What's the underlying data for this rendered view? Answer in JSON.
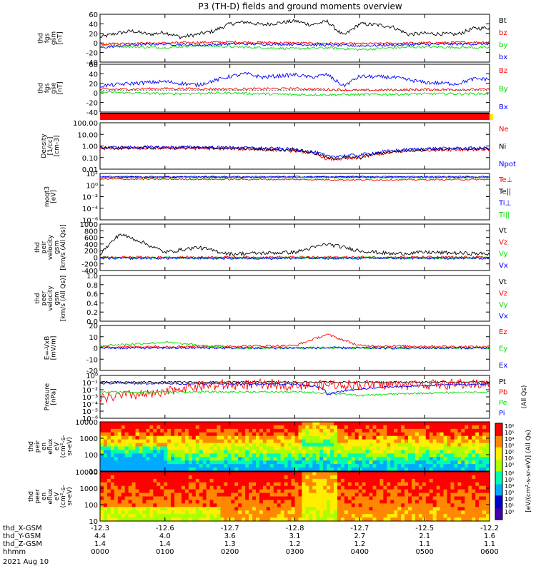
{
  "page": {
    "title": "P3 (TH-D) fields and ground moments overview"
  },
  "colors": {
    "black": "#000000",
    "red": "#ff0000",
    "green": "#00dd00",
    "blue": "#0000ff"
  },
  "time": {
    "ticks": [
      "0000",
      "0100",
      "0200",
      "0300",
      "0400",
      "0500",
      "0600"
    ],
    "ephem_rows": [
      {
        "label": "thd_X-GSM",
        "values": [
          "-12.3",
          "-12.6",
          "-12.7",
          "-12.8",
          "-12.7",
          "-12.5",
          "-12.2"
        ]
      },
      {
        "label": "thd_Y-GSM",
        "values": [
          "4.4",
          "4.0",
          "3.6",
          "3.1",
          "2.7",
          "2.1",
          "1.6"
        ]
      },
      {
        "label": "thd_Z-GSM",
        "values": [
          "1.4",
          "1.4",
          "1.3",
          "1.2",
          "1.2",
          "1.1",
          "1.1"
        ]
      },
      {
        "label": "hhmm",
        "values": [
          "0000",
          "0100",
          "0200",
          "0300",
          "0400",
          "0500",
          "0600"
        ]
      }
    ],
    "date": "2021 Aug 10"
  },
  "chart_data": [
    {
      "type": "line",
      "id": "fgs_gsm",
      "ylabel": [
        "thd",
        "fgs",
        "gsm",
        "[nT]"
      ],
      "ylim": [
        -40,
        60
      ],
      "yticks": [
        "60",
        "40",
        "20",
        "0",
        "-20",
        "-40"
      ],
      "series": [
        {
          "name": "Bt",
          "color": "black",
          "knots": [
            [
              0,
              12
            ],
            [
              0.25,
              20
            ],
            [
              0.5,
              25
            ],
            [
              0.75,
              18
            ],
            [
              1,
              22
            ],
            [
              1.25,
              12
            ],
            [
              1.5,
              18
            ],
            [
              1.75,
              25
            ],
            [
              2,
              40
            ],
            [
              2.25,
              44
            ],
            [
              2.5,
              38
            ],
            [
              2.75,
              42
            ],
            [
              3,
              46
            ],
            [
              3.25,
              38
            ],
            [
              3.5,
              45
            ],
            [
              3.75,
              15
            ],
            [
              4,
              40
            ],
            [
              4.25,
              38
            ],
            [
              4.5,
              34
            ],
            [
              4.75,
              18
            ],
            [
              5,
              20
            ],
            [
              5.5,
              18
            ],
            [
              5.75,
              30
            ],
            [
              6,
              32
            ]
          ]
        },
        {
          "name": "bz",
          "color": "red",
          "knots": [
            [
              0,
              -2
            ],
            [
              1,
              0
            ],
            [
              2,
              2
            ],
            [
              3,
              0
            ],
            [
              4,
              -2
            ],
            [
              5,
              0
            ],
            [
              6,
              2
            ]
          ]
        },
        {
          "name": "by",
          "color": "green",
          "knots": [
            [
              0,
              -5
            ],
            [
              0.5,
              -8
            ],
            [
              1,
              -10
            ],
            [
              1.5,
              -5
            ],
            [
              2,
              -8
            ],
            [
              2.5,
              -10
            ],
            [
              3,
              -12
            ],
            [
              3.5,
              -10
            ],
            [
              4,
              -14
            ],
            [
              4.5,
              -10
            ],
            [
              5,
              -8
            ],
            [
              6,
              -10
            ]
          ]
        },
        {
          "name": "bx",
          "color": "blue",
          "knots": [
            [
              0,
              -10
            ],
            [
              0.5,
              -4
            ],
            [
              1,
              -2
            ],
            [
              1.5,
              -5
            ],
            [
              2,
              -2
            ],
            [
              3,
              -3
            ],
            [
              4,
              -6
            ],
            [
              5,
              -3
            ],
            [
              6,
              -2
            ]
          ]
        }
      ]
    },
    {
      "type": "line",
      "id": "fgs_gse",
      "ylabel": [
        "thd",
        "fgs",
        "gse",
        "[nT]"
      ],
      "ylim": [
        -50,
        60
      ],
      "yticks": [
        "60",
        "40",
        "20",
        "0",
        "-20",
        "-40"
      ],
      "series": [
        {
          "name": "Bz",
          "color": "red",
          "knots": [
            [
              0,
              2
            ],
            [
              1,
              4
            ],
            [
              2,
              3
            ],
            [
              3,
              4
            ],
            [
              4,
              0
            ],
            [
              5,
              2
            ],
            [
              6,
              2
            ]
          ]
        },
        {
          "name": "By",
          "color": "green",
          "knots": [
            [
              0,
              -4
            ],
            [
              1,
              -8
            ],
            [
              2,
              -6
            ],
            [
              3,
              -10
            ],
            [
              4,
              -10
            ],
            [
              5,
              -8
            ],
            [
              6,
              -8
            ]
          ]
        },
        {
          "name": "Bx",
          "color": "blue",
          "knots": [
            [
              0,
              10
            ],
            [
              0.5,
              16
            ],
            [
              1,
              20
            ],
            [
              1.5,
              12
            ],
            [
              2,
              32
            ],
            [
              2.25,
              38
            ],
            [
              2.5,
              30
            ],
            [
              3,
              36
            ],
            [
              3.25,
              30
            ],
            [
              3.5,
              36
            ],
            [
              3.75,
              10
            ],
            [
              4,
              32
            ],
            [
              4.5,
              30
            ],
            [
              5,
              18
            ],
            [
              5.5,
              15
            ],
            [
              5.75,
              26
            ],
            [
              6,
              26
            ]
          ]
        }
      ]
    },
    {
      "type": "line",
      "id": "density",
      "scale": "log",
      "ylabel": [
        "Density",
        "[1/cc]",
        "[cm-3]"
      ],
      "ylim": [
        0.01,
        200
      ],
      "yticks": [
        "100.00",
        "10.00",
        "1.00",
        "0.10",
        "0.01"
      ],
      "series": [
        {
          "name": "Ne",
          "color": "red",
          "knots": [
            [
              0,
              0.8
            ],
            [
              1,
              0.9
            ],
            [
              2,
              0.8
            ],
            [
              3,
              0.5
            ],
            [
              3.5,
              0.08
            ],
            [
              4,
              0.1
            ],
            [
              5,
              0.6
            ],
            [
              6,
              0.7
            ]
          ]
        },
        {
          "name": "Ni",
          "color": "black",
          "knots": [
            [
              0,
              0.9
            ],
            [
              1,
              1.0
            ],
            [
              2,
              0.9
            ],
            [
              3,
              0.6
            ],
            [
              3.5,
              0.1
            ],
            [
              4,
              0.12
            ],
            [
              5,
              0.7
            ],
            [
              6,
              0.8
            ]
          ]
        },
        {
          "name": "Npot",
          "color": "blue",
          "knots": [
            [
              0,
              1.0
            ],
            [
              1,
              1.1
            ],
            [
              2,
              1.0
            ],
            [
              3,
              0.7
            ],
            [
              3.5,
              0.15
            ],
            [
              4,
              0.2
            ],
            [
              5,
              0.8
            ],
            [
              6,
              0.9
            ]
          ]
        }
      ]
    },
    {
      "type": "line",
      "id": "temperature",
      "scale": "log",
      "ylabel": [
        "moqt3",
        "[eV]"
      ],
      "ylim": [
        1e-07,
        1000
      ],
      "yticks": [
        "10²",
        "10⁰",
        "10⁻²",
        "10⁻⁴",
        "10⁻⁶"
      ],
      "series": [
        {
          "name": "Te⊥",
          "color": "red",
          "knots": [
            [
              0,
              60
            ],
            [
              3,
              50
            ],
            [
              4,
              40
            ],
            [
              6,
              50
            ]
          ]
        },
        {
          "name": "Te||",
          "color": "black",
          "knots": [
            [
              0,
              150
            ],
            [
              6,
              150
            ]
          ]
        },
        {
          "name": "Ti⊥",
          "color": "blue",
          "knots": [
            [
              0,
              200
            ],
            [
              6,
              200
            ]
          ]
        },
        {
          "name": "Ti||",
          "color": "green",
          "knots": [
            [
              0,
              120
            ],
            [
              6,
              120
            ]
          ]
        }
      ]
    },
    {
      "type": "line",
      "id": "peir_velocity",
      "ylabel": [
        "thd",
        "peir",
        "velocity",
        "gsm",
        "[km/s (All Qs)]"
      ],
      "ylim": [
        -400,
        1000
      ],
      "yticks": [
        "1000",
        "800",
        "600",
        "400",
        "200",
        "0",
        "-200",
        "-400"
      ],
      "series": [
        {
          "name": "Vt",
          "color": "black",
          "knots": [
            [
              0,
              100
            ],
            [
              0.3,
              700
            ],
            [
              0.6,
              500
            ],
            [
              1,
              150
            ],
            [
              1.5,
              300
            ],
            [
              2,
              100
            ],
            [
              3,
              150
            ],
            [
              3.5,
              400
            ],
            [
              4,
              200
            ],
            [
              4.5,
              100
            ],
            [
              5,
              150
            ],
            [
              6,
              100
            ]
          ]
        },
        {
          "name": "Vz",
          "color": "red",
          "knots": [
            [
              0,
              0
            ],
            [
              6,
              0
            ]
          ]
        },
        {
          "name": "Vy",
          "color": "green",
          "knots": [
            [
              0,
              -20
            ],
            [
              6,
              -20
            ]
          ]
        },
        {
          "name": "Vx",
          "color": "blue",
          "knots": [
            [
              0,
              -30
            ],
            [
              6,
              -30
            ]
          ]
        }
      ]
    },
    {
      "type": "line",
      "id": "peer_velocity",
      "ylabel": [
        "thd",
        "peer",
        "velocity",
        "gsm",
        "[km/s (All Qs)]"
      ],
      "ylim": [
        0,
        1
      ],
      "yticks": [
        "1.0",
        "0.8",
        "0.6",
        "0.4",
        "0.2",
        "0.0"
      ],
      "series": [
        {
          "name": "Vt",
          "color": "black",
          "knots": []
        },
        {
          "name": "Vz",
          "color": "red",
          "knots": []
        },
        {
          "name": "Vy",
          "color": "green",
          "knots": []
        },
        {
          "name": "Vx",
          "color": "blue",
          "knots": []
        }
      ]
    },
    {
      "type": "line",
      "id": "efield",
      "ylabel": [
        "E=-VxB",
        "[mV/m]"
      ],
      "ylim": [
        -20,
        20
      ],
      "yticks": [
        "20",
        "10",
        "0",
        "-10",
        "-20"
      ],
      "series": [
        {
          "name": "Ez",
          "color": "red",
          "knots": [
            [
              0,
              1
            ],
            [
              3,
              2
            ],
            [
              3.5,
              12
            ],
            [
              4,
              2
            ],
            [
              6,
              1
            ]
          ]
        },
        {
          "name": "Ey",
          "color": "green",
          "knots": [
            [
              0,
              2
            ],
            [
              1,
              5
            ],
            [
              2,
              0
            ],
            [
              6,
              0
            ]
          ]
        },
        {
          "name": "Ex",
          "color": "blue",
          "knots": [
            [
              0,
              0
            ],
            [
              6,
              0
            ]
          ]
        }
      ]
    },
    {
      "type": "line",
      "id": "pressure",
      "scale": "log",
      "ylabel": [
        "Pressure",
        "[nPa]"
      ],
      "ylim": [
        1e-06,
        10
      ],
      "yticks": [
        "10⁰",
        "10⁻¹",
        "10⁻²",
        "10⁻³",
        "10⁻⁴",
        "10⁻⁵",
        "10⁻⁶"
      ],
      "legend_suffix": "(All Qs)",
      "series": [
        {
          "name": "Pt",
          "color": "black",
          "knots": [
            [
              0,
              0.8
            ],
            [
              6,
              0.8
            ]
          ]
        },
        {
          "name": "Pb",
          "color": "red",
          "knots": [
            [
              0,
              0.002
            ],
            [
              1,
              0.01
            ],
            [
              2,
              0.3
            ],
            [
              3,
              0.3
            ],
            [
              4,
              0.3
            ],
            [
              6,
              0.4
            ]
          ]
        },
        {
          "name": "Pe",
          "color": "green",
          "knots": [
            [
              0,
              0.02
            ],
            [
              3,
              0.02
            ],
            [
              4,
              0.005
            ],
            [
              6,
              0.02
            ]
          ]
        },
        {
          "name": "Pi",
          "color": "blue",
          "knots": [
            [
              0,
              0.5
            ],
            [
              3,
              0.4
            ],
            [
              3.5,
              0.005
            ],
            [
              4,
              0.05
            ],
            [
              6,
              0.4
            ]
          ]
        }
      ]
    },
    {
      "type": "heatmap",
      "id": "peir_spec",
      "ylabel": [
        "thd",
        "peir",
        "en",
        "eflux",
        "eV",
        "(cm²-s-",
        "sr-eV)"
      ],
      "ylim": [
        5,
        20000
      ],
      "yticks": [
        "10000",
        "1000",
        "100",
        "10"
      ]
    },
    {
      "type": "heatmap",
      "id": "peer_spec",
      "ylabel": [
        "thd",
        "peer",
        "en",
        "eflux",
        "eV",
        "(cm²-s-",
        "sr-eV)"
      ],
      "ylim": [
        5,
        20000
      ],
      "yticks": [
        "10000",
        "1000",
        "100",
        "10"
      ]
    }
  ],
  "colorbar": {
    "label": "[eV/(cm²-s-sr-eV)] (All Qs)",
    "ticks_top": [
      "10⁶",
      "10⁵",
      "10⁴",
      "10³",
      "10²",
      "10¹",
      "10⁰"
    ],
    "ticks_bottom": [
      "10⁶",
      "10⁵",
      "10⁴",
      "10³",
      "10²",
      "10¹",
      "10⁰"
    ]
  }
}
